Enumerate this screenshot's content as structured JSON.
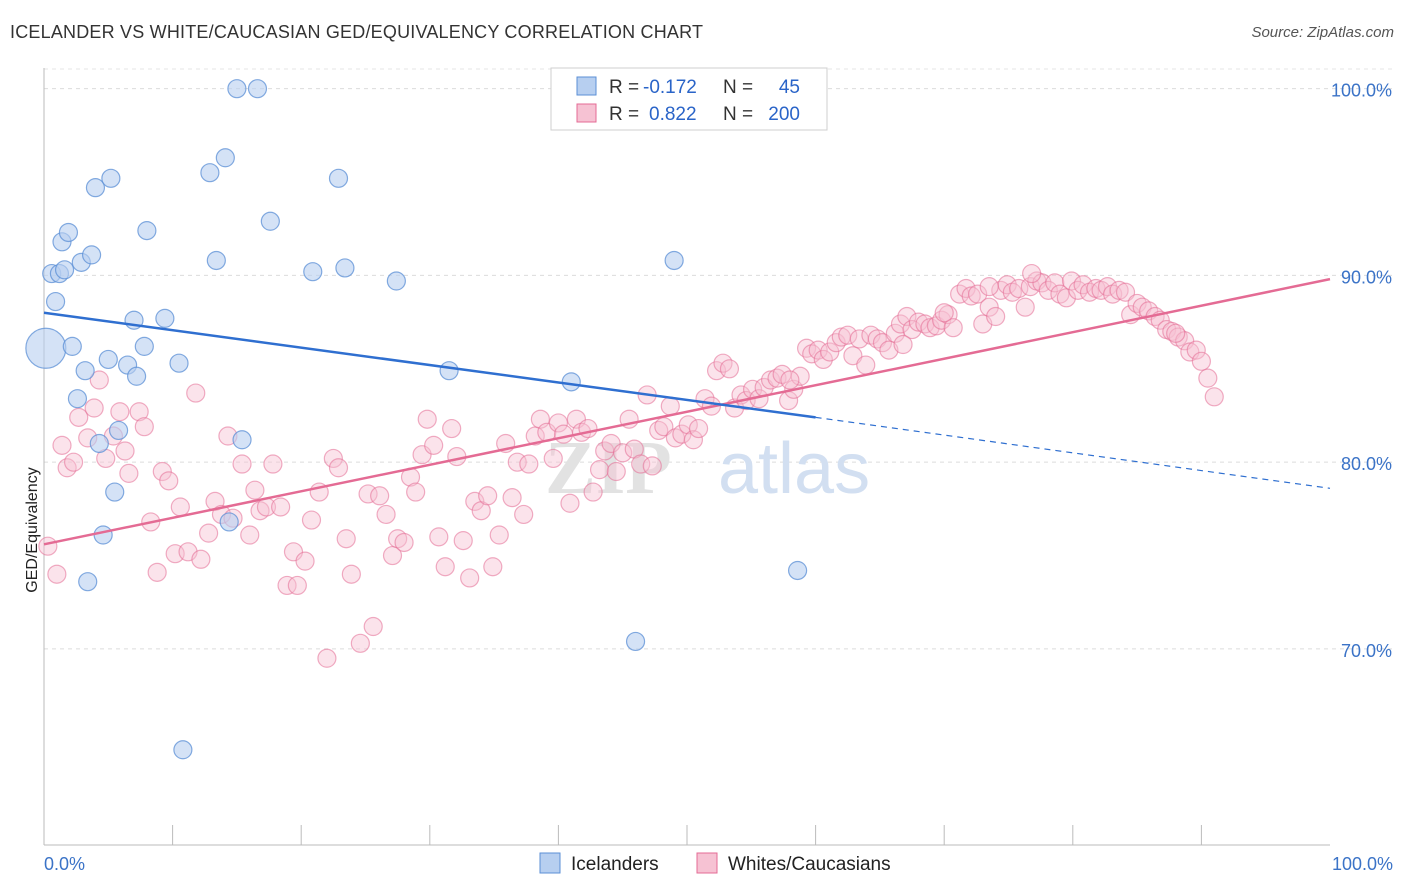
{
  "title": "ICELANDER VS WHITE/CAUCASIAN GED/EQUIVALENCY CORRELATION CHART",
  "source": "Source: ZipAtlas.com",
  "colors": {
    "blue": "#5b8fd6",
    "blue_fill": "#b7cff0",
    "pink": "#e46b94",
    "pink_fill": "#f6c2d3",
    "tick": "#3b73c7"
  },
  "legend": {
    "rows": [
      {
        "r_label": "R =",
        "r_value": "-0.172",
        "n_label": "N =",
        "n_value": "45"
      },
      {
        "r_label": "R =",
        "r_value": "0.822",
        "n_label": "N =",
        "n_value": "200"
      }
    ]
  },
  "bottom_legend": [
    "Icelanders",
    "Whites/Caucasians"
  ],
  "watermark": {
    "zip": "ZIP",
    "atlas": "atlas"
  },
  "chart_data": {
    "type": "scatter",
    "ylabel": "GED/Equivalency",
    "xlabel": "",
    "x_tick_labels": [
      "0.0%",
      "100.0%"
    ],
    "y_tick_labels": [
      "100.0%",
      "90.0%",
      "80.0%",
      "70.0%"
    ],
    "y_ticks": [
      100,
      90,
      80,
      70
    ],
    "xlim": [
      0,
      100
    ],
    "ylim": [
      59.5,
      101
    ],
    "grid": true,
    "legend_position": "top-center",
    "series": [
      {
        "name": "Icelanders",
        "trend": {
          "x0": 0,
          "y0": 88.0,
          "x1": 60,
          "y1": 82.4,
          "dash_to_x": 100,
          "dash_to_y": 78.6
        },
        "points": [
          [
            0.3,
            86.1
          ],
          [
            0.6,
            90.1
          ],
          [
            0.9,
            88.6
          ],
          [
            1.2,
            90.1
          ],
          [
            1.4,
            91.8
          ],
          [
            1.6,
            90.3
          ],
          [
            1.9,
            92.3
          ],
          [
            2.2,
            86.2
          ],
          [
            2.6,
            83.4
          ],
          [
            2.9,
            90.7
          ],
          [
            3.2,
            84.9
          ],
          [
            3.4,
            73.6
          ],
          [
            3.7,
            91.1
          ],
          [
            4.0,
            94.7
          ],
          [
            4.3,
            81.0
          ],
          [
            4.6,
            76.1
          ],
          [
            5.0,
            85.5
          ],
          [
            5.2,
            95.2
          ],
          [
            5.5,
            78.4
          ],
          [
            5.8,
            81.7
          ],
          [
            6.5,
            85.2
          ],
          [
            7.0,
            87.6
          ],
          [
            7.2,
            84.6
          ],
          [
            7.8,
            86.2
          ],
          [
            8.0,
            92.4
          ],
          [
            9.4,
            87.7
          ],
          [
            10.5,
            85.3
          ],
          [
            10.8,
            64.6
          ],
          [
            12.9,
            95.5
          ],
          [
            13.4,
            90.8
          ],
          [
            14.1,
            96.3
          ],
          [
            14.4,
            76.8
          ],
          [
            15.0,
            100.0
          ],
          [
            15.4,
            81.2
          ],
          [
            16.6,
            100.0
          ],
          [
            17.6,
            92.9
          ],
          [
            20.9,
            90.2
          ],
          [
            22.9,
            95.2
          ],
          [
            23.4,
            90.4
          ],
          [
            27.4,
            89.7
          ],
          [
            31.5,
            84.9
          ],
          [
            41.0,
            84.3
          ],
          [
            46.0,
            70.4
          ],
          [
            49.0,
            90.8
          ],
          [
            58.6,
            74.2
          ]
        ]
      },
      {
        "name": "Whites/Caucasians",
        "trend": {
          "x0": 0,
          "y0": 75.6,
          "x1": 100,
          "y1": 89.8
        },
        "points": [
          [
            0.3,
            75.5
          ],
          [
            1.0,
            74.0
          ],
          [
            1.4,
            80.9
          ],
          [
            1.8,
            79.7
          ],
          [
            2.3,
            80.0
          ],
          [
            2.7,
            82.4
          ],
          [
            3.4,
            81.3
          ],
          [
            3.9,
            82.9
          ],
          [
            4.3,
            84.4
          ],
          [
            4.8,
            80.2
          ],
          [
            5.4,
            81.4
          ],
          [
            5.9,
            82.7
          ],
          [
            6.3,
            80.6
          ],
          [
            6.6,
            79.4
          ],
          [
            7.4,
            82.7
          ],
          [
            7.8,
            81.9
          ],
          [
            8.3,
            76.8
          ],
          [
            8.8,
            74.1
          ],
          [
            9.2,
            79.5
          ],
          [
            9.7,
            79.0
          ],
          [
            10.2,
            75.1
          ],
          [
            10.6,
            77.6
          ],
          [
            11.2,
            75.2
          ],
          [
            11.8,
            83.7
          ],
          [
            12.2,
            74.8
          ],
          [
            12.8,
            76.2
          ],
          [
            13.3,
            77.9
          ],
          [
            13.8,
            77.2
          ],
          [
            14.3,
            81.4
          ],
          [
            14.7,
            77.0
          ],
          [
            15.4,
            79.9
          ],
          [
            16.0,
            76.1
          ],
          [
            16.4,
            78.5
          ],
          [
            16.8,
            77.4
          ],
          [
            17.3,
            77.6
          ],
          [
            17.8,
            79.9
          ],
          [
            18.4,
            77.6
          ],
          [
            18.9,
            73.4
          ],
          [
            19.4,
            75.2
          ],
          [
            19.7,
            73.4
          ],
          [
            20.3,
            74.7
          ],
          [
            20.8,
            76.9
          ],
          [
            21.4,
            78.4
          ],
          [
            22.0,
            69.5
          ],
          [
            22.5,
            80.2
          ],
          [
            22.9,
            79.7
          ],
          [
            23.5,
            75.9
          ],
          [
            23.9,
            74.0
          ],
          [
            24.6,
            70.3
          ],
          [
            25.2,
            78.3
          ],
          [
            25.6,
            71.2
          ],
          [
            26.1,
            78.2
          ],
          [
            26.6,
            77.2
          ],
          [
            27.1,
            75.0
          ],
          [
            27.5,
            75.9
          ],
          [
            28.0,
            75.7
          ],
          [
            28.5,
            79.2
          ],
          [
            28.9,
            78.4
          ],
          [
            29.4,
            80.4
          ],
          [
            29.8,
            82.3
          ],
          [
            30.3,
            80.9
          ],
          [
            30.7,
            76.0
          ],
          [
            31.2,
            74.4
          ],
          [
            31.7,
            81.8
          ],
          [
            32.1,
            80.3
          ],
          [
            32.6,
            75.8
          ],
          [
            33.1,
            73.8
          ],
          [
            33.5,
            77.9
          ],
          [
            34.0,
            77.4
          ],
          [
            34.5,
            78.2
          ],
          [
            34.9,
            74.4
          ],
          [
            35.4,
            76.1
          ],
          [
            35.9,
            81.0
          ],
          [
            36.4,
            78.1
          ],
          [
            36.8,
            80.0
          ],
          [
            37.3,
            77.2
          ],
          [
            37.7,
            79.9
          ],
          [
            38.2,
            81.4
          ],
          [
            38.6,
            82.3
          ],
          [
            39.1,
            81.6
          ],
          [
            39.6,
            80.2
          ],
          [
            40.0,
            82.1
          ],
          [
            40.4,
            81.5
          ],
          [
            40.9,
            77.8
          ],
          [
            41.4,
            82.3
          ],
          [
            41.8,
            81.6
          ],
          [
            42.3,
            81.8
          ],
          [
            42.7,
            78.4
          ],
          [
            43.2,
            79.6
          ],
          [
            43.6,
            80.6
          ],
          [
            44.1,
            81.0
          ],
          [
            44.5,
            79.5
          ],
          [
            45.0,
            80.5
          ],
          [
            45.5,
            82.3
          ],
          [
            45.9,
            80.7
          ],
          [
            46.4,
            79.9
          ],
          [
            46.9,
            83.6
          ],
          [
            47.3,
            79.8
          ],
          [
            47.8,
            81.7
          ],
          [
            48.2,
            81.9
          ],
          [
            48.7,
            83.0
          ],
          [
            49.1,
            81.3
          ],
          [
            49.6,
            81.5
          ],
          [
            50.1,
            82.0
          ],
          [
            50.5,
            81.2
          ],
          [
            50.9,
            81.8
          ],
          [
            51.4,
            83.4
          ],
          [
            51.9,
            83.0
          ],
          [
            52.3,
            84.9
          ],
          [
            52.8,
            85.3
          ],
          [
            53.3,
            85.0
          ],
          [
            53.7,
            82.9
          ],
          [
            54.2,
            83.6
          ],
          [
            54.6,
            83.3
          ],
          [
            55.1,
            83.9
          ],
          [
            55.6,
            83.4
          ],
          [
            56.0,
            84.0
          ],
          [
            56.5,
            84.4
          ],
          [
            57.0,
            84.5
          ],
          [
            57.4,
            84.7
          ],
          [
            57.9,
            83.3
          ],
          [
            58.3,
            83.9
          ],
          [
            58.8,
            84.6
          ],
          [
            59.3,
            86.1
          ],
          [
            59.7,
            85.8
          ],
          [
            60.2,
            86.0
          ],
          [
            60.6,
            85.5
          ],
          [
            61.1,
            85.9
          ],
          [
            61.6,
            86.4
          ],
          [
            62.0,
            86.7
          ],
          [
            62.5,
            86.8
          ],
          [
            62.9,
            85.7
          ],
          [
            63.4,
            86.6
          ],
          [
            63.9,
            85.2
          ],
          [
            64.3,
            86.8
          ],
          [
            64.8,
            86.6
          ],
          [
            65.2,
            86.4
          ],
          [
            65.7,
            86.0
          ],
          [
            66.2,
            86.9
          ],
          [
            66.6,
            87.4
          ],
          [
            67.1,
            87.8
          ],
          [
            67.5,
            87.1
          ],
          [
            68.0,
            87.5
          ],
          [
            68.5,
            87.4
          ],
          [
            68.9,
            87.2
          ],
          [
            69.4,
            87.3
          ],
          [
            69.8,
            87.6
          ],
          [
            70.3,
            87.9
          ],
          [
            70.7,
            87.2
          ],
          [
            71.2,
            89.0
          ],
          [
            71.7,
            89.3
          ],
          [
            72.1,
            88.9
          ],
          [
            72.6,
            89.0
          ],
          [
            73.0,
            87.4
          ],
          [
            73.5,
            88.3
          ],
          [
            74.0,
            87.8
          ],
          [
            74.4,
            89.2
          ],
          [
            74.9,
            89.5
          ],
          [
            75.3,
            89.1
          ],
          [
            75.8,
            89.3
          ],
          [
            76.3,
            88.3
          ],
          [
            76.7,
            89.4
          ],
          [
            77.2,
            89.7
          ],
          [
            77.6,
            89.6
          ],
          [
            78.1,
            89.2
          ],
          [
            78.6,
            89.6
          ],
          [
            79.0,
            89.0
          ],
          [
            79.5,
            88.8
          ],
          [
            79.9,
            89.7
          ],
          [
            80.4,
            89.2
          ],
          [
            80.8,
            89.5
          ],
          [
            81.3,
            89.1
          ],
          [
            81.8,
            89.3
          ],
          [
            82.2,
            89.2
          ],
          [
            82.7,
            89.4
          ],
          [
            83.1,
            89.0
          ],
          [
            83.6,
            89.2
          ],
          [
            84.1,
            89.1
          ],
          [
            84.5,
            87.9
          ],
          [
            85.0,
            88.5
          ],
          [
            85.4,
            88.3
          ],
          [
            85.9,
            88.1
          ],
          [
            86.4,
            87.8
          ],
          [
            86.8,
            87.6
          ],
          [
            87.3,
            87.1
          ],
          [
            87.7,
            87.0
          ],
          [
            88.2,
            86.7
          ],
          [
            88.7,
            86.5
          ],
          [
            89.1,
            85.9
          ],
          [
            89.6,
            86.0
          ],
          [
            90.0,
            85.4
          ],
          [
            90.5,
            84.5
          ],
          [
            91.0,
            83.5
          ],
          [
            76.8,
            90.1
          ],
          [
            73.5,
            89.4
          ],
          [
            88.0,
            86.9
          ],
          [
            70.0,
            88.0
          ],
          [
            66.8,
            86.3
          ],
          [
            58.0,
            84.4
          ]
        ]
      }
    ]
  }
}
